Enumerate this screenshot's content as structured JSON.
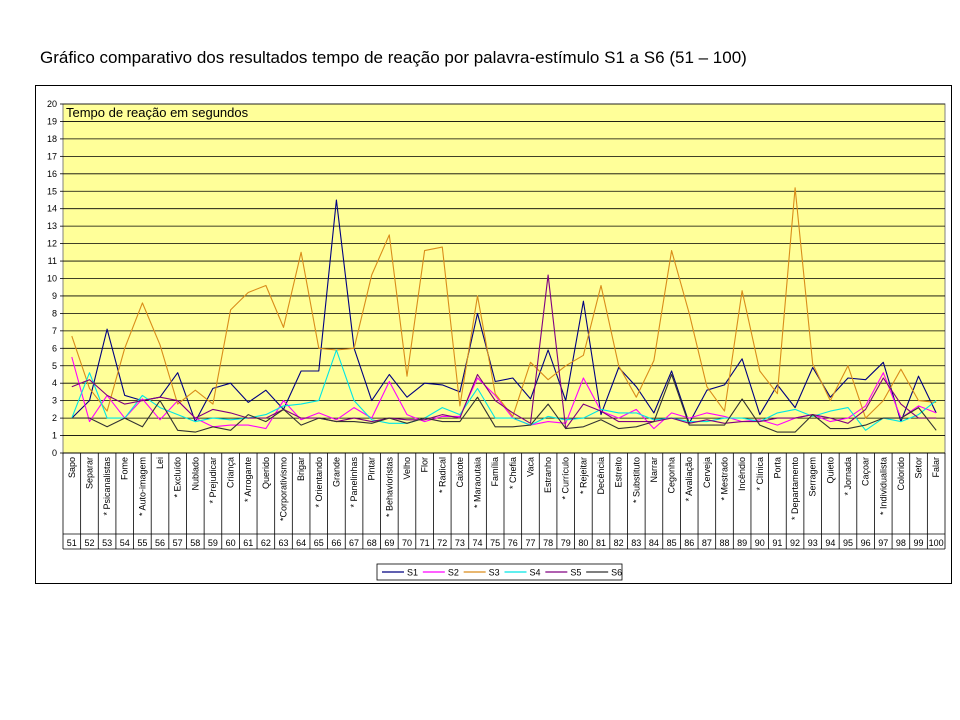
{
  "title": "Gráfico comparativo dos resultados tempo de reação por palavra-estímulo S1 a S6 (51 – 100)",
  "chart_data": {
    "type": "line",
    "title": "Gráfico comparativo dos resultados tempo de reação por palavra-estímulo S1 a S6 (51 – 100)",
    "ylabel": "Tempo de reação em segundos",
    "ylim": [
      0,
      20
    ],
    "yticks": [
      0,
      1,
      2,
      3,
      4,
      5,
      6,
      7,
      8,
      9,
      10,
      11,
      12,
      13,
      14,
      15,
      16,
      17,
      18,
      19,
      20
    ],
    "grid": true,
    "plot_background": "#ffff99",
    "legend_position": "bottom",
    "categories": [
      "Sapo",
      "Separar",
      "* Psicanalistas",
      "Fome",
      "* Auto-imagem",
      "Lei",
      "* Excluído",
      "Nublado",
      "* Prejudicar",
      "Criança",
      "* Arrogante",
      "Querido",
      "*Corporativismo",
      "Brigar",
      "* Orientando",
      "Grande",
      "* Panelinhas",
      "Pintar",
      "* Behavioristas",
      "Velho",
      "Flor",
      "* Radical",
      "Caixote",
      "* Maraoutaia",
      "Família",
      "* Chefia",
      "Vaca",
      "Estranho",
      "* Currículo",
      "* Rejeitar",
      "Decência",
      "Estreito",
      "* Substituto",
      "Narrar",
      "Cegonha",
      "* Avaliação",
      "Cerveja",
      "* Mestrado",
      "Incêndio",
      "* Clínica",
      "Porta",
      "* Departamento",
      "Serragem",
      "Quieto",
      "* Jornada",
      "Caçoar",
      "* Individualista",
      "Colorido",
      "Setor",
      "Falar"
    ],
    "numbers": [
      "51",
      "52",
      "53",
      "54",
      "55",
      "56",
      "57",
      "58",
      "59",
      "60",
      "61",
      "62",
      "63",
      "64",
      "65",
      "66",
      "67",
      "68",
      "69",
      "70",
      "71",
      "72",
      "73",
      "74",
      "75",
      "76",
      "77",
      "78",
      "79",
      "80",
      "81",
      "82",
      "83",
      "84",
      "85",
      "86",
      "87",
      "88",
      "89",
      "90",
      "91",
      "92",
      "93",
      "94",
      "95",
      "96",
      "97",
      "98",
      "99",
      "100"
    ],
    "series": [
      {
        "name": "S1",
        "color": "#000080",
        "values": [
          2.0,
          3.0,
          7.1,
          3.3,
          3.0,
          3.2,
          4.6,
          1.8,
          3.7,
          4.0,
          2.9,
          3.6,
          2.5,
          4.7,
          4.7,
          14.5,
          6.0,
          3.0,
          4.5,
          3.2,
          4.0,
          3.9,
          3.5,
          8.0,
          4.1,
          4.3,
          3.1,
          5.9,
          3.0,
          8.7,
          2.2,
          4.9,
          3.8,
          2.3,
          4.7,
          1.7,
          3.6,
          3.9,
          5.4,
          2.2,
          3.9,
          2.6,
          4.9,
          3.2,
          4.3,
          4.2,
          5.2,
          1.8,
          4.4,
          2.3
        ]
      },
      {
        "name": "S2",
        "color": "#ff00ff",
        "values": [
          5.5,
          1.8,
          3.3,
          2.0,
          3.1,
          1.9,
          3.0,
          2.0,
          1.5,
          1.6,
          1.6,
          1.4,
          3.0,
          1.9,
          2.3,
          1.9,
          2.6,
          2.0,
          4.1,
          2.2,
          1.8,
          2.1,
          2.1,
          4.3,
          3.3,
          2.0,
          1.6,
          1.8,
          1.7,
          4.3,
          2.4,
          2.0,
          2.5,
          1.4,
          2.3,
          2.0,
          2.3,
          2.1,
          1.8,
          1.9,
          1.6,
          2.0,
          2.2,
          1.8,
          2.0,
          2.7,
          4.6,
          2.0,
          2.7,
          2.3
        ]
      },
      {
        "name": "S3",
        "color": "#d98c1a",
        "values": [
          6.7,
          3.7,
          2.4,
          6.0,
          8.6,
          6.2,
          2.8,
          3.6,
          2.8,
          8.2,
          9.2,
          9.6,
          7.2,
          11.5,
          6.0,
          5.9,
          6.0,
          10.2,
          12.5,
          4.4,
          11.6,
          11.8,
          2.7,
          9.0,
          3.4,
          2.1,
          5.2,
          4.2,
          5.0,
          5.6,
          9.6,
          5.0,
          3.2,
          5.3,
          11.6,
          8.0,
          3.8,
          2.4,
          9.3,
          4.7,
          3.4,
          15.2,
          5.1,
          3.0,
          5.0,
          2.0,
          3.0,
          4.8,
          3.0,
          2.9
        ]
      },
      {
        "name": "S4",
        "color": "#00e5e5",
        "values": [
          2.0,
          4.6,
          2.0,
          2.0,
          3.3,
          2.6,
          2.2,
          1.8,
          2.0,
          1.9,
          2.0,
          2.2,
          2.7,
          2.8,
          3.0,
          5.9,
          3.0,
          1.9,
          1.7,
          1.7,
          2.0,
          2.6,
          2.2,
          3.7,
          2.0,
          2.0,
          1.6,
          2.1,
          1.9,
          2.0,
          2.5,
          2.3,
          2.3,
          1.9,
          2.0,
          1.8,
          1.8,
          2.0,
          2.0,
          1.8,
          2.3,
          2.5,
          2.1,
          2.4,
          2.6,
          1.3,
          2.0,
          1.8,
          2.2,
          3.0
        ]
      },
      {
        "name": "S5",
        "color": "#800080",
        "values": [
          3.8,
          4.2,
          3.3,
          2.8,
          3.0,
          3.2,
          3.0,
          2.0,
          2.5,
          2.3,
          2.0,
          2.0,
          2.5,
          2.0,
          2.0,
          1.8,
          2.0,
          1.8,
          2.0,
          1.9,
          1.9,
          2.2,
          2.0,
          4.5,
          3.0,
          2.3,
          1.7,
          10.2,
          1.4,
          2.8,
          2.4,
          1.8,
          1.8,
          1.8,
          2.0,
          1.7,
          1.9,
          1.7,
          1.8,
          1.8,
          2.0,
          2.0,
          2.2,
          2.0,
          1.7,
          2.5,
          4.3,
          2.8,
          2.0,
          2.0
        ]
      },
      {
        "name": "S6",
        "color": "#333333",
        "values": [
          2.0,
          2.0,
          1.5,
          2.0,
          1.5,
          3.0,
          1.3,
          1.2,
          1.5,
          1.3,
          2.2,
          1.8,
          2.5,
          1.6,
          2.0,
          1.8,
          1.8,
          1.7,
          2.0,
          1.7,
          2.0,
          1.8,
          1.8,
          3.2,
          1.5,
          1.5,
          1.6,
          2.8,
          1.4,
          1.5,
          1.9,
          1.4,
          1.5,
          1.8,
          4.5,
          1.6,
          1.6,
          1.6,
          3.1,
          1.6,
          1.2,
          1.2,
          2.2,
          1.4,
          1.4,
          1.6,
          2.0,
          2.0,
          2.6,
          1.3
        ]
      }
    ]
  }
}
